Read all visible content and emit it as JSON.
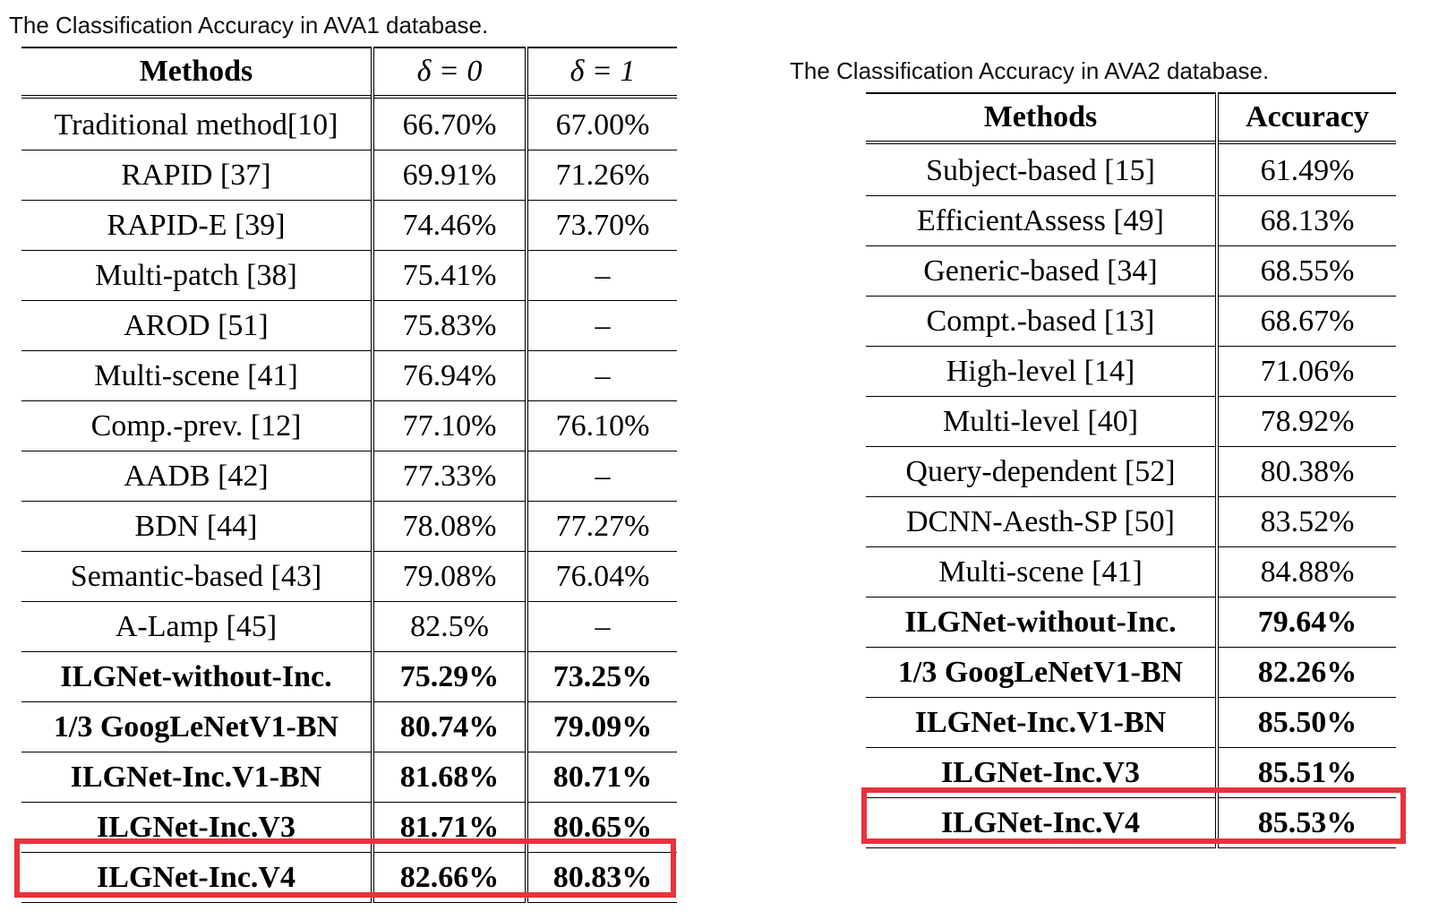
{
  "table1": {
    "caption": "The Classification Accuracy in AVA1 database.",
    "headers": [
      "Methods",
      "δ = 0",
      "δ = 1"
    ],
    "rows": [
      {
        "method": "Traditional method[10]",
        "d0": "66.70%",
        "d1": "67.00%",
        "bold": false
      },
      {
        "method": "RAPID [37]",
        "d0": "69.91%",
        "d1": "71.26%",
        "bold": false
      },
      {
        "method": "RAPID-E [39]",
        "d0": "74.46%",
        "d1": "73.70%",
        "bold": false
      },
      {
        "method": "Multi-patch [38]",
        "d0": "75.41%",
        "d1": "–",
        "bold": false
      },
      {
        "method": "AROD [51]",
        "d0": "75.83%",
        "d1": "–",
        "bold": false
      },
      {
        "method": "Multi-scene [41]",
        "d0": "76.94%",
        "d1": "–",
        "bold": false
      },
      {
        "method": "Comp.-prev. [12]",
        "d0": "77.10%",
        "d1": "76.10%",
        "bold": false
      },
      {
        "method": "AADB [42]",
        "d0": "77.33%",
        "d1": "–",
        "bold": false
      },
      {
        "method": "BDN [44]",
        "d0": "78.08%",
        "d1": "77.27%",
        "bold": false
      },
      {
        "method": "Semantic-based [43]",
        "d0": "79.08%",
        "d1": "76.04%",
        "bold": false
      },
      {
        "method": "A-Lamp [45]",
        "d0": "82.5%",
        "d1": "–",
        "bold": false
      },
      {
        "method": "ILGNet-without-Inc.",
        "d0": "75.29%",
        "d1": "73.25%",
        "bold": true
      },
      {
        "method": "1/3 GoogLeNetV1-BN",
        "d0": "80.74%",
        "d1": "79.09%",
        "bold": true
      },
      {
        "method": "ILGNet-Inc.V1-BN",
        "d0": "81.68%",
        "d1": "80.71%",
        "bold": true
      },
      {
        "method": "ILGNet-Inc.V3",
        "d0": "81.71%",
        "d1": "80.65%",
        "bold": true
      },
      {
        "method": "ILGNet-Inc.V4",
        "d0": "82.66%",
        "d1": "80.83%",
        "bold": true
      }
    ]
  },
  "table2": {
    "caption": "The Classification Accuracy in AVA2 database.",
    "headers": [
      "Methods",
      "Accuracy"
    ],
    "rows": [
      {
        "method": "Subject-based [15]",
        "acc": "61.49%",
        "bold": false
      },
      {
        "method": "EfficientAssess [49]",
        "acc": "68.13%",
        "bold": false
      },
      {
        "method": "Generic-based [34]",
        "acc": "68.55%",
        "bold": false
      },
      {
        "method": "Compt.-based [13]",
        "acc": "68.67%",
        "bold": false
      },
      {
        "method": "High-level [14]",
        "acc": "71.06%",
        "bold": false
      },
      {
        "method": "Multi-level [40]",
        "acc": "78.92%",
        "bold": false
      },
      {
        "method": "Query-dependent [52]",
        "acc": "80.38%",
        "bold": false
      },
      {
        "method": "DCNN-Aesth-SP [50]",
        "acc": "83.52%",
        "bold": false
      },
      {
        "method": "Multi-scene [41]",
        "acc": "84.88%",
        "bold": false
      },
      {
        "method": "ILGNet-without-Inc.",
        "acc": "79.64%",
        "bold": true
      },
      {
        "method": "1/3 GoogLeNetV1-BN",
        "acc": "82.26%",
        "bold": true
      },
      {
        "method": "ILGNet-Inc.V1-BN",
        "acc": "85.50%",
        "bold": true
      },
      {
        "method": "ILGNet-Inc.V3",
        "acc": "85.51%",
        "bold": true
      },
      {
        "method": "ILGNet-Inc.V4",
        "acc": "85.53%",
        "bold": true
      }
    ]
  },
  "highlight_color": "#e8323c"
}
